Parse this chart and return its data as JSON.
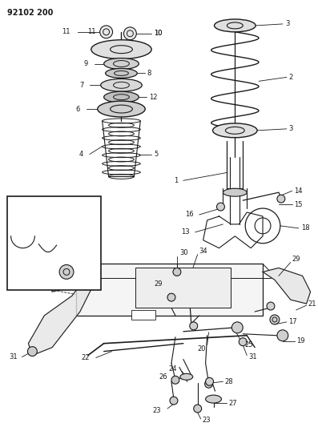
{
  "title_code": "92102 200",
  "bg_color": "#ffffff",
  "line_color": "#1a1a1a",
  "fig_width": 3.97,
  "fig_height": 5.33,
  "dpi": 100
}
